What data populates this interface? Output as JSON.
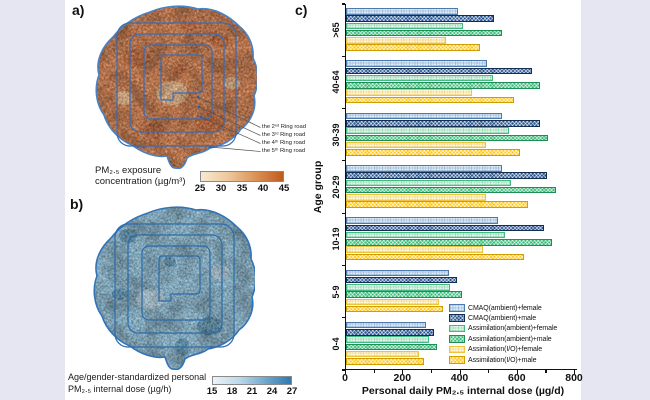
{
  "canvas": {
    "margin_color": "#e6e6f3",
    "paper_color": "#ffffff"
  },
  "panels": {
    "a": {
      "label": "a)",
      "ring_labels": [
        "the 2ⁿᵈ Ring road",
        "the 3ʳᵈ Ring road",
        "the 4ᵗʰ Ring road",
        "the 5ᵗʰ Ring road"
      ],
      "colorbar": {
        "caption_line1": "PM₂.₅  exposure",
        "caption_line2": "concentration (µg/m³)",
        "ticks": [
          "25",
          "30",
          "35",
          "40",
          "45"
        ],
        "gradient": [
          "#f6ead1",
          "#eec79b",
          "#dc9256",
          "#c05a1e"
        ]
      },
      "map_colors": {
        "base": "#d07844",
        "outline": "#4a80c4",
        "rings": "#3b6cb4"
      }
    },
    "b": {
      "label": "b)",
      "colorbar": {
        "caption_line1": "Age/gender-standardized personal",
        "caption_line2": "PM₂.₅ internal dose (µg/h)",
        "ticks": [
          "15",
          "18",
          "21",
          "24",
          "27"
        ],
        "gradient": [
          "#eaf4fa",
          "#bcd9ea",
          "#6fa9d0",
          "#2f78b0"
        ]
      },
      "map_colors": {
        "base": "#8abbd4",
        "outline": "#3273b8",
        "rings": "#2e6ba8"
      }
    },
    "c": {
      "label": "c)"
    }
  },
  "chart_data": [
    {
      "type": "bar",
      "orientation": "horizontal",
      "panel": "c",
      "title": "",
      "xlabel": "Personal daily PM₂.₅ internal dose (µg/d)",
      "ylabel": "Age group",
      "xlim": [
        0,
        800
      ],
      "xticks": [
        0,
        200,
        400,
        600,
        800
      ],
      "xticks_minor": [
        100,
        300,
        500,
        700
      ],
      "grid": false,
      "legend_position": "lower right",
      "categories": [
        ">65",
        "40-64",
        "30-39",
        "20-29",
        "10-19",
        "5-9",
        "0-4"
      ],
      "series": [
        {
          "name": "CMAQ(ambient)+female",
          "fill": "#dcebf7",
          "border": "#4d79ad",
          "pattern": "grid",
          "values": [
            390,
            492,
            546,
            546,
            530,
            358,
            280
          ]
        },
        {
          "name": "CMAQ(ambient)+male",
          "fill": "#27538f",
          "border": "#122e52",
          "pattern": "checker",
          "values": [
            518,
            650,
            676,
            701,
            693,
            386,
            306
          ]
        },
        {
          "name": "Assimilation(ambient)+female",
          "fill": "#e6f5ec",
          "border": "#43ba81",
          "pattern": "grid",
          "values": [
            408,
            515,
            571,
            575,
            556,
            363,
            291
          ]
        },
        {
          "name": "Assimilation(ambient)+male",
          "fill": "#3cbb7b",
          "border": "#1d8f55",
          "pattern": "checker",
          "values": [
            545,
            679,
            705,
            734,
            720,
            404,
            318
          ]
        },
        {
          "name": "Assimilation(I/O)+female",
          "fill": "#fdf8e1",
          "border": "#eec43e",
          "pattern": "grid",
          "values": [
            350,
            440,
            489,
            490,
            479,
            324,
            254
          ]
        },
        {
          "name": "Assimilation(I/O)+male",
          "fill": "#ffc517",
          "border": "#cf9e03",
          "pattern": "checker",
          "values": [
            469,
            588,
            609,
            634,
            623,
            339,
            274
          ]
        }
      ]
    },
    {
      "type": "heatmap",
      "panel": "a",
      "variable": "PM₂.₅ exposure concentration (µg/m³)",
      "scale_range": [
        25,
        45
      ],
      "scale_ticks": [
        25,
        30,
        35,
        40,
        45
      ],
      "annotations": [
        "the 2ⁿᵈ Ring road",
        "the 3ʳᵈ Ring road",
        "the 4ᵗʰ Ring road",
        "the 5ᵗʰ Ring road"
      ]
    },
    {
      "type": "heatmap",
      "panel": "b",
      "variable": "Age/gender-standardized personal PM₂.₅ internal dose (µg/h)",
      "scale_range": [
        15,
        27
      ],
      "scale_ticks": [
        15,
        18,
        21,
        24,
        27
      ]
    }
  ]
}
